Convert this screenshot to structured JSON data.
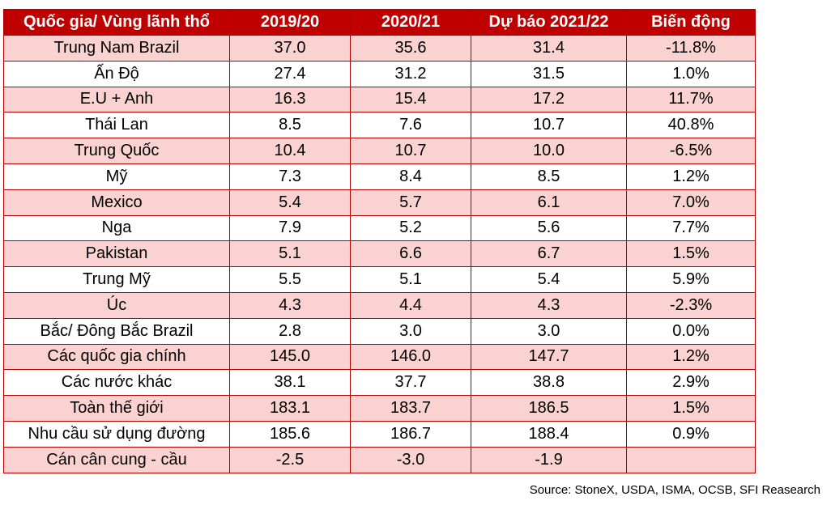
{
  "table": {
    "headers": [
      "Quốc gia/ Vùng lãnh thổ",
      "2019/20",
      "2020/21",
      "Dự báo 2021/22",
      "Biến động"
    ],
    "rows": [
      [
        "Trung Nam Brazil",
        "37.0",
        "35.6",
        "31.4",
        "-11.8%"
      ],
      [
        "Ấn Độ",
        "27.4",
        "31.2",
        "31.5",
        "1.0%"
      ],
      [
        "E.U + Anh",
        "16.3",
        "15.4",
        "17.2",
        "11.7%"
      ],
      [
        "Thái Lan",
        "8.5",
        "7.6",
        "10.7",
        "40.8%"
      ],
      [
        "Trung Quốc",
        "10.4",
        "10.7",
        "10.0",
        "-6.5%"
      ],
      [
        "Mỹ",
        "7.3",
        "8.4",
        "8.5",
        "1.2%"
      ],
      [
        "Mexico",
        "5.4",
        "5.7",
        "6.1",
        "7.0%"
      ],
      [
        "Nga",
        "7.9",
        "5.2",
        "5.6",
        "7.7%"
      ],
      [
        "Pakistan",
        "5.1",
        "6.6",
        "6.7",
        "1.5%"
      ],
      [
        "Trung Mỹ",
        "5.5",
        "5.1",
        "5.4",
        "5.9%"
      ],
      [
        "Úc",
        "4.3",
        "4.4",
        "4.3",
        "-2.3%"
      ],
      [
        "Bắc/ Đông Bắc Brazil",
        "2.8",
        "3.0",
        "3.0",
        "0.0%"
      ],
      [
        "Các quốc gia chính",
        "145.0",
        "146.0",
        "147.7",
        "1.2%"
      ],
      [
        "Các nước khác",
        "38.1",
        "37.7",
        "38.8",
        "2.9%"
      ],
      [
        "Toàn thế giới",
        "183.1",
        "183.7",
        "186.5",
        "1.5%"
      ],
      [
        "Nhu cầu sử dụng đường",
        "185.6",
        "186.7",
        "188.4",
        "0.9%"
      ],
      [
        "Cán cân cung - cầu",
        "-2.5",
        "-3.0",
        "-1.9",
        ""
      ]
    ]
  },
  "source": "Source: StoneX, USDA, ISMA, OCSB, SFI Reasearch",
  "colors": {
    "header_bg": "#c00000",
    "stripe_bg": "#fbd2d2",
    "border": "#b00000"
  }
}
